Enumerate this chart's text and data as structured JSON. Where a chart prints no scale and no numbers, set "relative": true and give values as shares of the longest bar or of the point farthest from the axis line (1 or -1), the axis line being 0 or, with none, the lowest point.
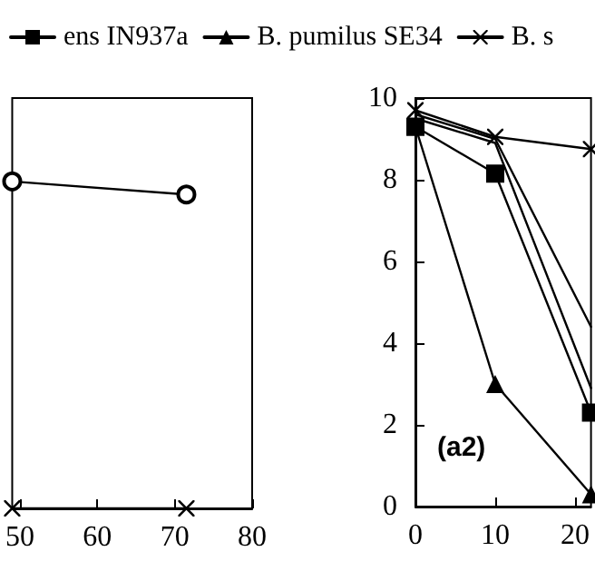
{
  "chart_data": [
    {
      "type": "line",
      "relative": true,
      "xlim": [
        49,
        80
      ],
      "xticks": [
        50,
        60,
        70,
        80
      ],
      "grid": false,
      "legend": false,
      "line_style": "solid",
      "series": [
        {
          "color": "#000000",
          "marker": "circle",
          "x": [
            49,
            71.5
          ],
          "values": [
            1,
            0.96
          ]
        },
        {
          "color": "#000000",
          "marker": "cross",
          "x": [
            49,
            71.5
          ],
          "values": [
            0,
            0
          ]
        }
      ]
    },
    {
      "type": "line",
      "xlim": [
        0,
        22
      ],
      "xticks": [
        0,
        10,
        20
      ],
      "ylim": [
        0,
        10
      ],
      "yticks": [
        0,
        2,
        4,
        6,
        8,
        10
      ],
      "grid": false,
      "legend": "top",
      "line_style": "solid",
      "annotations": [
        "(a2)"
      ],
      "series": [
        {
          "name": "ens IN937a",
          "color": "#000000",
          "marker": "square",
          "x": [
            0,
            10,
            22
          ],
          "values": [
            9.3,
            8.15,
            2.3
          ]
        },
        {
          "name": "B. pumilus SE34",
          "color": "#000000",
          "marker": "triangle",
          "x": [
            0,
            10,
            22
          ],
          "values": [
            9.3,
            3.0,
            0.3
          ]
        },
        {
          "name": "B. s",
          "color": "#000000",
          "marker": "cross",
          "x": [
            0,
            10,
            22
          ],
          "values": [
            9.7,
            9.05,
            8.75
          ]
        },
        {
          "color": "#000000",
          "marker": "none",
          "x": [
            0,
            10,
            22
          ],
          "values": [
            9.6,
            9.0,
            4.4
          ]
        },
        {
          "color": "#000000",
          "marker": "none",
          "x": [
            0,
            10,
            22
          ],
          "values": [
            9.5,
            8.9,
            2.9
          ]
        }
      ]
    }
  ]
}
